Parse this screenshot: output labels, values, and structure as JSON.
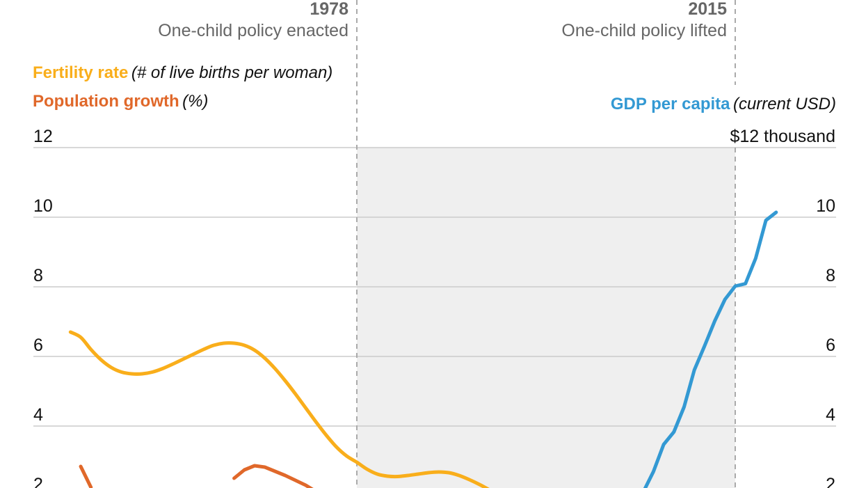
{
  "chart_data": {
    "type": "line",
    "colors": {
      "fertility": "#f9ae1b",
      "population": "#e0682a",
      "gdp": "#3399d3",
      "grid": "#cccccc",
      "shade": "#efefef",
      "annotation": "#666666"
    },
    "annotations": [
      {
        "year": "1978",
        "label": "One-child policy enacted"
      },
      {
        "year": "2015",
        "label": "One-child policy lifted"
      }
    ],
    "shaded_period": [
      1978,
      2015
    ],
    "left_axis": {
      "legend": [
        {
          "name": "Fertility rate",
          "unit": "(# of live births per woman)"
        },
        {
          "name": "Population growth",
          "unit": "(%)"
        }
      ],
      "ylim": [
        2,
        12
      ],
      "ticks": [
        "12",
        "10",
        "8",
        "6",
        "4",
        "2"
      ]
    },
    "right_axis": {
      "legend": {
        "name": "GDP per capita",
        "unit": "(current USD)"
      },
      "ylim": [
        2,
        12
      ],
      "ticks": [
        "$12 thousand",
        "10",
        "8",
        "6",
        "4",
        "2"
      ]
    },
    "grid": true,
    "series": [
      {
        "name": "Fertility rate",
        "axis": "left",
        "x": [
          1950,
          1951,
          1952,
          1953,
          1954,
          1955,
          1956,
          1957,
          1958,
          1959,
          1960,
          1961,
          1962,
          1963,
          1964,
          1965,
          1966,
          1967,
          1968,
          1969,
          1970,
          1971,
          1972,
          1973,
          1974,
          1975,
          1976,
          1977,
          1978,
          1979,
          1980,
          1981,
          1982,
          1983,
          1984,
          1985,
          1986,
          1987,
          1988,
          1989,
          1990,
          1991
        ],
        "y": [
          6.7,
          6.55,
          6.2,
          5.9,
          5.68,
          5.55,
          5.5,
          5.5,
          5.55,
          5.65,
          5.78,
          5.92,
          6.06,
          6.2,
          6.32,
          6.38,
          6.38,
          6.32,
          6.18,
          5.95,
          5.65,
          5.3,
          4.92,
          4.52,
          4.12,
          3.74,
          3.4,
          3.14,
          2.96,
          2.76,
          2.62,
          2.56,
          2.55,
          2.58,
          2.62,
          2.66,
          2.68,
          2.66,
          2.58,
          2.46,
          2.32,
          2.16
        ]
      },
      {
        "name": "Population growth",
        "axis": "left",
        "x": [
          1951,
          1952,
          1965,
          1966,
          1967,
          1968,
          1969,
          1970,
          1971,
          1972,
          1973,
          1974
        ],
        "y": [
          2.84,
          2.24,
          null,
          2.5,
          2.74,
          2.86,
          2.82,
          2.7,
          2.58,
          2.44,
          2.3,
          2.12
        ]
      },
      {
        "name": "GDP per capita",
        "axis": "right",
        "x": [
          2006,
          2007,
          2008,
          2009,
          2010,
          2011,
          2012,
          2013,
          2014,
          2015,
          2016,
          2017,
          2018,
          2019
        ],
        "y": [
          2.1,
          2.69,
          3.47,
          3.83,
          4.55,
          5.61,
          6.3,
          7.02,
          7.64,
          8.02,
          8.09,
          8.82,
          9.91,
          10.14
        ]
      }
    ]
  }
}
